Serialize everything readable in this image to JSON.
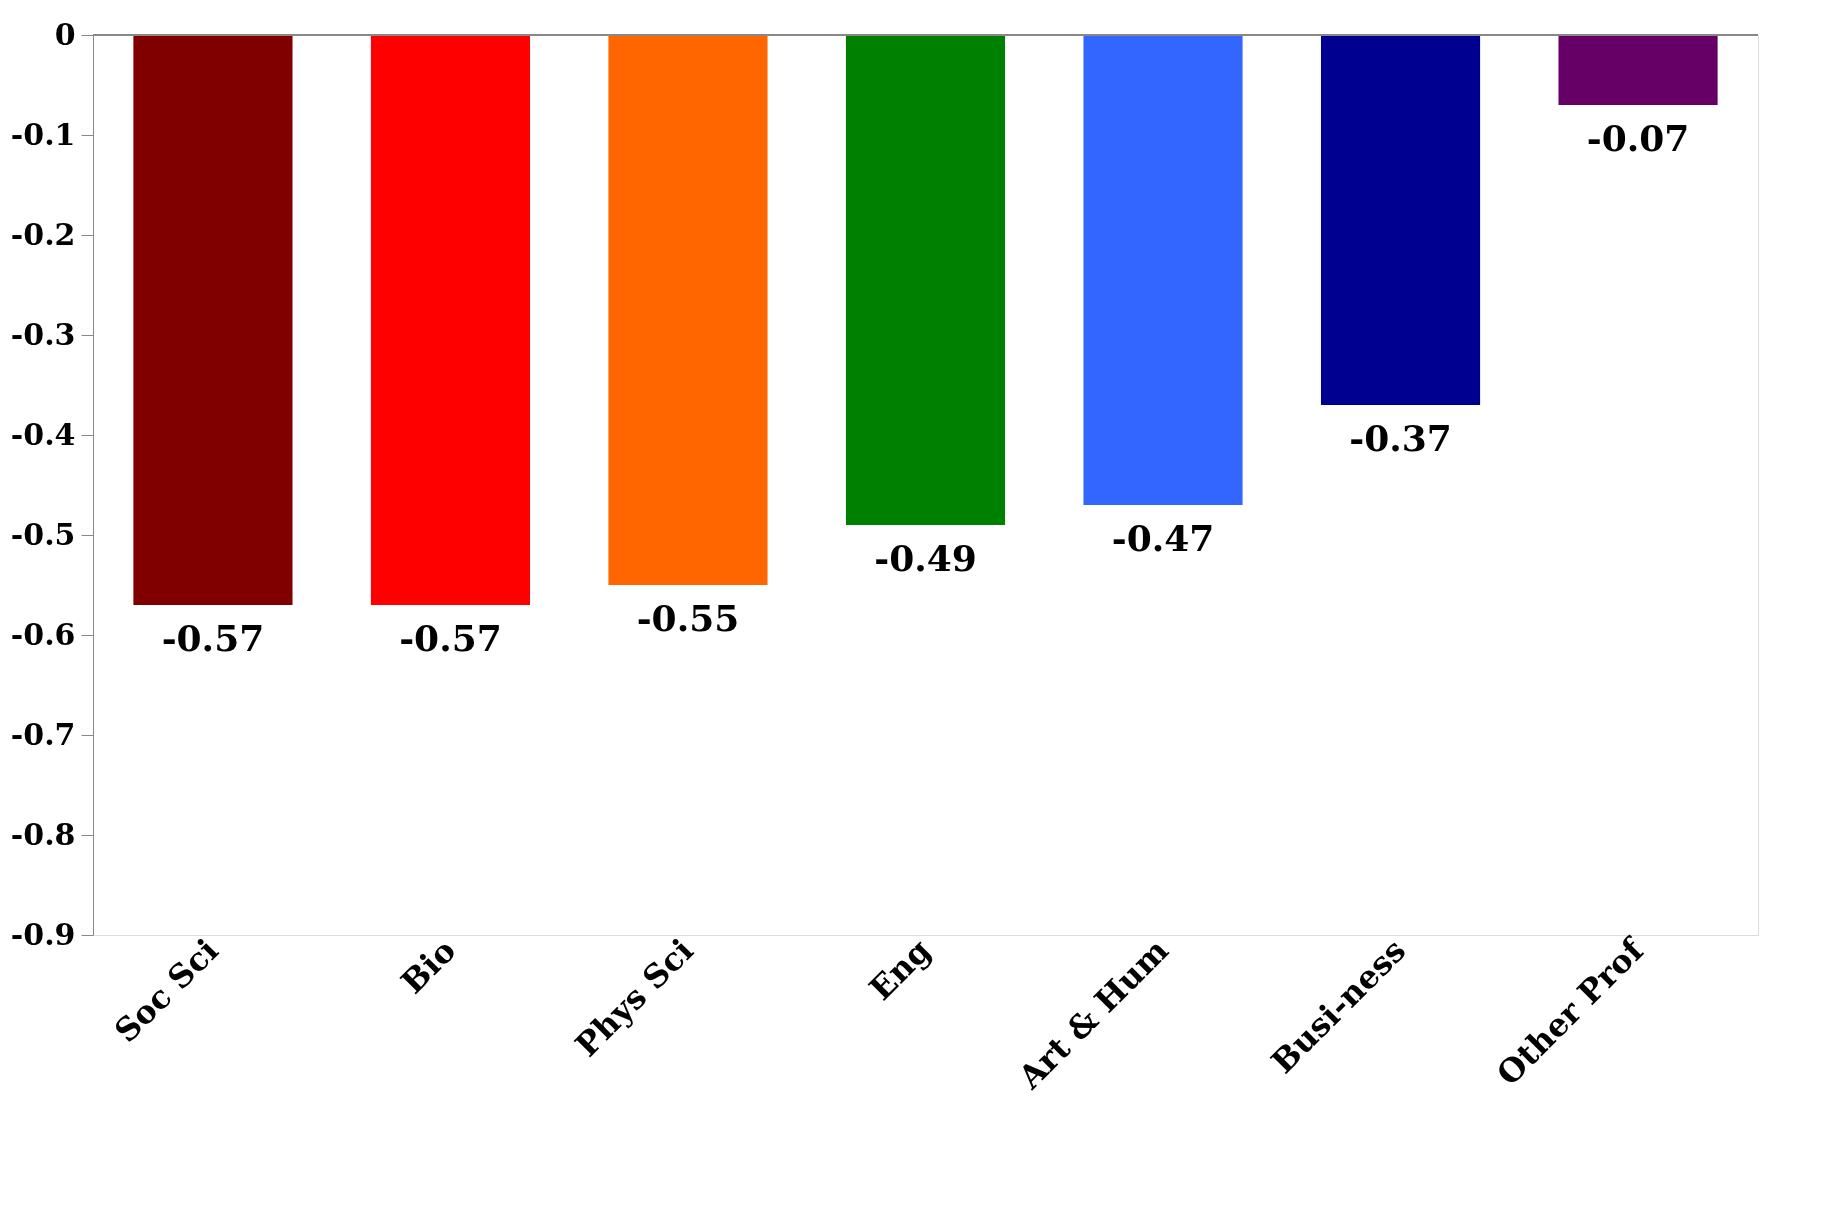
{
  "chart_data": {
    "type": "bar",
    "categories": [
      "Soc Sci",
      "Bio",
      "Phys Sci",
      "Eng",
      "Art & Hum",
      "Busi-ness",
      "Other Prof"
    ],
    "values": [
      -0.57,
      -0.57,
      -0.55,
      -0.49,
      -0.47,
      -0.37,
      -0.07
    ],
    "colors": [
      "#800000",
      "#ff0000",
      "#ff6600",
      "#008000",
      "#3366ff",
      "#000090",
      "#660066"
    ],
    "ylim": [
      -0.9,
      0
    ],
    "yticks": [
      0,
      -0.1,
      -0.2,
      -0.3,
      -0.4,
      -0.5,
      -0.6,
      -0.7,
      -0.8,
      -0.9
    ],
    "data_labels": true,
    "grid": false
  }
}
